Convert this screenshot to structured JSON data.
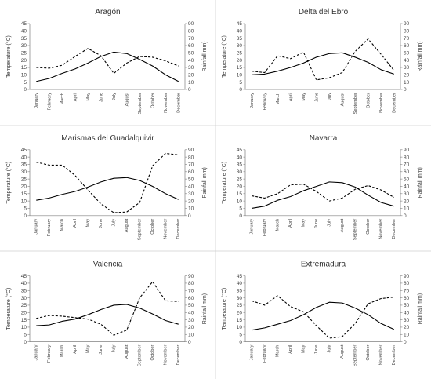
{
  "shared": {
    "months": [
      "January",
      "February",
      "March",
      "April",
      "May",
      "June",
      "July",
      "August",
      "September",
      "October",
      "November",
      "December"
    ],
    "ylabel_left": "Temperature (°C)",
    "ylabel_right": "Rainfall mm)",
    "left_ticks": [
      0,
      5,
      10,
      15,
      20,
      25,
      30,
      35,
      40,
      45
    ],
    "right_ticks": [
      0,
      10,
      20,
      30,
      40,
      50,
      60,
      70,
      80,
      90
    ]
  },
  "chart_data": [
    {
      "type": "line",
      "title": "Aragón",
      "ylim_left": [
        0,
        45
      ],
      "ylim_right": [
        0,
        90
      ],
      "series": [
        {
          "axis": "left",
          "style": "solid",
          "values": [
            5.5,
            7.5,
            11,
            14,
            18,
            22.5,
            25.5,
            24.5,
            20.5,
            16,
            10,
            5.5
          ]
        },
        {
          "axis": "right",
          "style": "dashed",
          "values": [
            30,
            29,
            33,
            45,
            56,
            46,
            22,
            36,
            45,
            44,
            39,
            32
          ]
        }
      ]
    },
    {
      "type": "line",
      "title": "Delta del Ebro",
      "ylim_left": [
        0,
        45
      ],
      "ylim_right": [
        0,
        90
      ],
      "series": [
        {
          "axis": "left",
          "style": "solid",
          "values": [
            10,
            10.5,
            12.5,
            15,
            18,
            22,
            24.5,
            25,
            22,
            18.5,
            13.5,
            10.5
          ]
        },
        {
          "axis": "right",
          "style": "dashed",
          "values": [
            25,
            23,
            46,
            42,
            51,
            13,
            16,
            23,
            52,
            69,
            48,
            26
          ]
        }
      ]
    },
    {
      "type": "line",
      "title": "Marismas del Guadalquivir",
      "ylim_left": [
        0,
        45
      ],
      "ylim_right": [
        0,
        90
      ],
      "series": [
        {
          "axis": "left",
          "style": "solid",
          "values": [
            10.5,
            12,
            14.5,
            16.5,
            19.5,
            23,
            25.5,
            26,
            24,
            20,
            15,
            11
          ]
        },
        {
          "axis": "right",
          "style": "dashed",
          "values": [
            73,
            69,
            69,
            55,
            35,
            16,
            4,
            5,
            18,
            68,
            85,
            83
          ]
        }
      ]
    },
    {
      "type": "line",
      "title": "Navarra",
      "ylim_left": [
        0,
        45
      ],
      "ylim_right": [
        0,
        90
      ],
      "series": [
        {
          "axis": "left",
          "style": "solid",
          "values": [
            5,
            6.5,
            10.5,
            13,
            17,
            20,
            23,
            22.5,
            19.5,
            14,
            9,
            6.5
          ]
        },
        {
          "axis": "right",
          "style": "dashed",
          "values": [
            27,
            24,
            30,
            42,
            43,
            33,
            20,
            24,
            36,
            41,
            35,
            25
          ]
        }
      ]
    },
    {
      "type": "line",
      "title": "Valencia",
      "ylim_left": [
        0,
        45
      ],
      "ylim_right": [
        0,
        90
      ],
      "series": [
        {
          "axis": "left",
          "style": "solid",
          "values": [
            11,
            11.5,
            14,
            15.5,
            18.5,
            22,
            25,
            25.5,
            23,
            19,
            14.5,
            12
          ]
        },
        {
          "axis": "right",
          "style": "dashed",
          "values": [
            32,
            36,
            35,
            33,
            31,
            24,
            9,
            16,
            60,
            82,
            56,
            55
          ]
        }
      ]
    },
    {
      "type": "line",
      "title": "Extremadura",
      "ylim_left": [
        0,
        45
      ],
      "ylim_right": [
        0,
        90
      ],
      "series": [
        {
          "axis": "left",
          "style": "solid",
          "values": [
            8,
            9.5,
            12,
            14.5,
            18.5,
            23.5,
            27,
            26.5,
            23,
            18.5,
            12.5,
            8.5
          ]
        },
        {
          "axis": "right",
          "style": "dashed",
          "values": [
            56,
            50,
            63,
            48,
            41,
            22,
            5,
            7,
            25,
            52,
            59,
            61
          ]
        }
      ]
    }
  ]
}
